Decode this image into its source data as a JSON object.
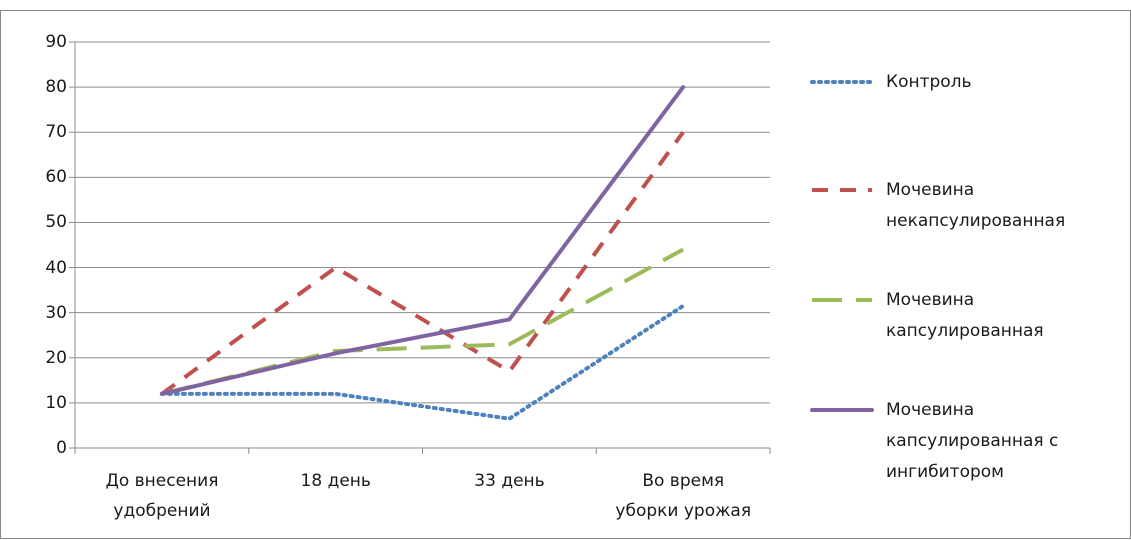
{
  "chart_data": {
    "type": "line",
    "categories": [
      "До внесения\nудобрений",
      "18 день",
      "33 день",
      "Во время\nуборки урожая"
    ],
    "series": [
      {
        "name": "Контроль",
        "color": "#4f81bd",
        "dash": "dotted",
        "values": [
          12,
          12,
          6.5,
          31.5
        ]
      },
      {
        "name": "Мочевина\nнекапсулированная",
        "color": "#c0504d",
        "dash": "dashed",
        "values": [
          12,
          40,
          17,
          70
        ]
      },
      {
        "name": "Мочевина\nкапсулированная",
        "color": "#9bbb59",
        "dash": "longdash",
        "values": [
          12,
          21.5,
          23,
          44
        ]
      },
      {
        "name": "Мочевина\nкапсулированная с\nингибитором",
        "color": "#8064a2",
        "dash": "solid",
        "values": [
          12,
          21,
          28.5,
          80
        ]
      }
    ],
    "ylim": [
      0,
      90
    ],
    "yticks": [
      0,
      10,
      20,
      30,
      40,
      50,
      60,
      70,
      80,
      90
    ],
    "grid": true,
    "legend": "right"
  }
}
